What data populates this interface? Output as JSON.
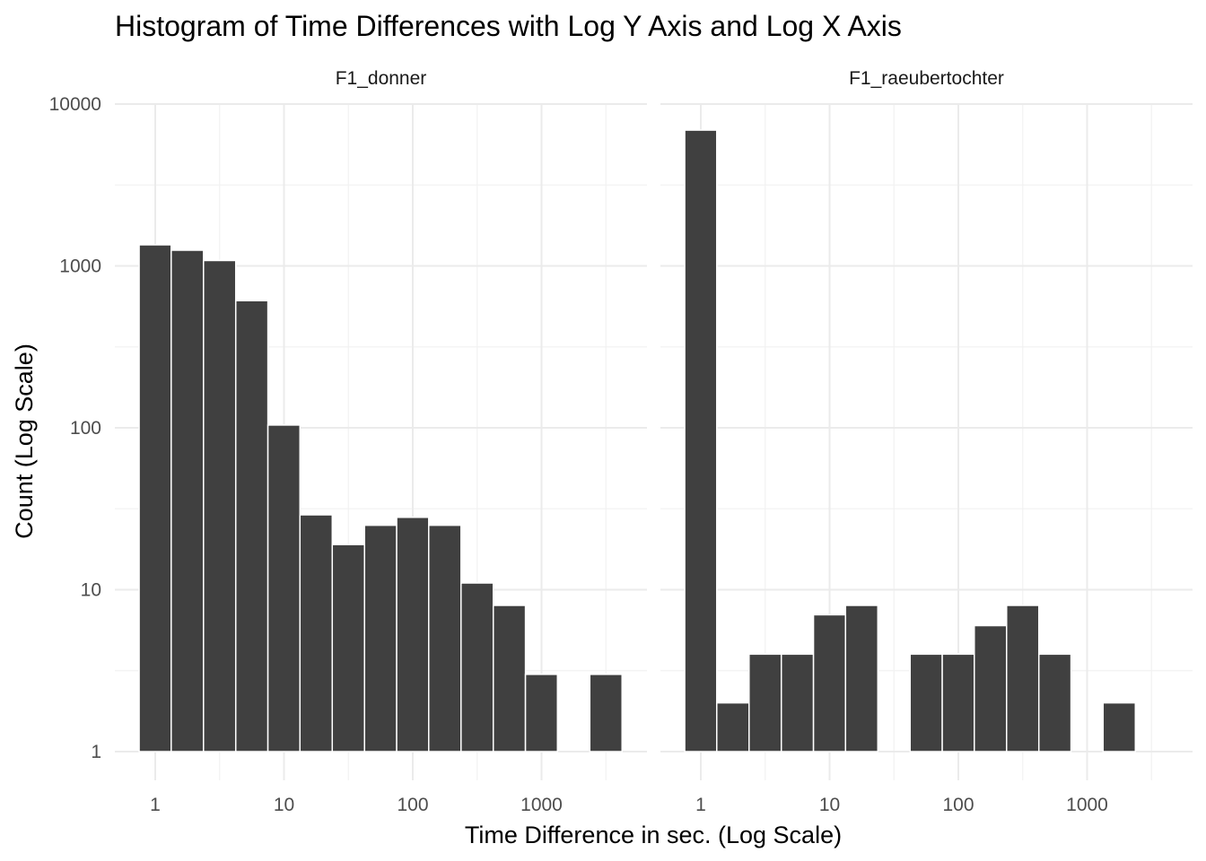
{
  "chart_data": {
    "type": "bar",
    "title": "Histogram of Time Differences with Log Y Axis and Log X Axis",
    "xlabel": "Time Difference in sec. (Log Scale)",
    "ylabel": "Count (Log Scale)",
    "x_scale": "log10",
    "y_scale": "log10",
    "x_ticks": [
      "1",
      "10",
      "100",
      "1000"
    ],
    "y_ticks": [
      "1",
      "10",
      "100",
      "1000",
      "10000"
    ],
    "ylim": [
      1,
      10000
    ],
    "grid": true,
    "bar_color": "#404040",
    "bar_outline": "#ffffff",
    "panels": [
      {
        "name": "F1_donner",
        "bars": [
          {
            "x_start": 0.75,
            "x_end": 1.33,
            "count": 1350
          },
          {
            "x_start": 1.33,
            "x_end": 2.37,
            "count": 1250
          },
          {
            "x_start": 2.37,
            "x_end": 4.22,
            "count": 1080
          },
          {
            "x_start": 4.22,
            "x_end": 7.5,
            "count": 610
          },
          {
            "x_start": 7.5,
            "x_end": 13.3,
            "count": 104
          },
          {
            "x_start": 13.3,
            "x_end": 23.7,
            "count": 29
          },
          {
            "x_start": 23.7,
            "x_end": 42.2,
            "count": 19
          },
          {
            "x_start": 42.2,
            "x_end": 75,
            "count": 25
          },
          {
            "x_start": 75,
            "x_end": 133,
            "count": 28
          },
          {
            "x_start": 133,
            "x_end": 237,
            "count": 25
          },
          {
            "x_start": 237,
            "x_end": 422,
            "count": 11
          },
          {
            "x_start": 422,
            "x_end": 750,
            "count": 8
          },
          {
            "x_start": 750,
            "x_end": 1330,
            "count": 3
          },
          {
            "x_start": 2370,
            "x_end": 4220,
            "count": 3
          }
        ]
      },
      {
        "name": "F1_raeubertochter",
        "bars": [
          {
            "x_start": 0.75,
            "x_end": 1.33,
            "count": 6900
          },
          {
            "x_start": 1.33,
            "x_end": 2.37,
            "count": 2
          },
          {
            "x_start": 2.37,
            "x_end": 4.22,
            "count": 4
          },
          {
            "x_start": 4.22,
            "x_end": 7.5,
            "count": 4
          },
          {
            "x_start": 7.5,
            "x_end": 13.3,
            "count": 7
          },
          {
            "x_start": 13.3,
            "x_end": 23.7,
            "count": 8
          },
          {
            "x_start": 42.2,
            "x_end": 75,
            "count": 4
          },
          {
            "x_start": 75,
            "x_end": 133,
            "count": 4
          },
          {
            "x_start": 133,
            "x_end": 237,
            "count": 6
          },
          {
            "x_start": 237,
            "x_end": 422,
            "count": 8
          },
          {
            "x_start": 422,
            "x_end": 750,
            "count": 4
          },
          {
            "x_start": 1330,
            "x_end": 2370,
            "count": 2
          }
        ]
      }
    ]
  }
}
